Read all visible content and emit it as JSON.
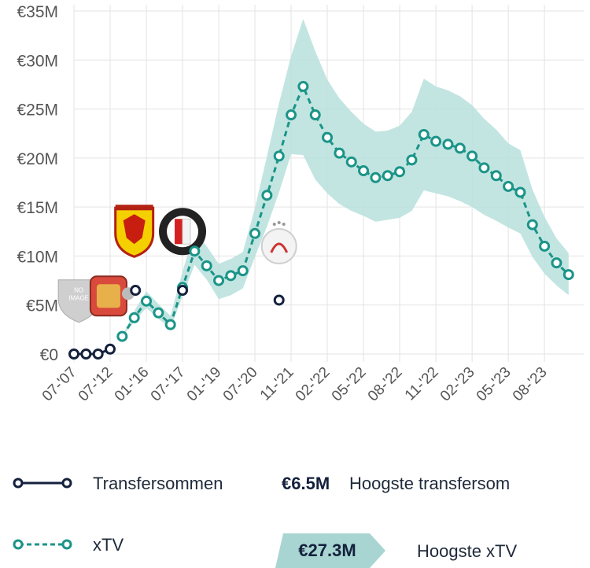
{
  "chart_data": {
    "type": "line",
    "y_ticks": [
      "€35M",
      "€30M",
      "€25M",
      "€20M",
      "€15M",
      "€10M",
      "€5M",
      "€0"
    ],
    "y_tick_values": [
      35,
      30,
      25,
      20,
      15,
      10,
      5,
      0
    ],
    "ylim": [
      0,
      35
    ],
    "x_ticks": [
      "07-'07",
      "07-'12",
      "01-'16",
      "07-'17",
      "01-'19",
      "07-'20",
      "11-'21",
      "02-'22",
      "05-'22",
      "08-'22",
      "11-'22",
      "02-'23",
      "05-'23",
      "08-'23"
    ],
    "x_tick_index": [
      0,
      3,
      6,
      9,
      12,
      15,
      18,
      21,
      24,
      27,
      30,
      33,
      36,
      39
    ],
    "x_count": 42,
    "series": [
      {
        "name": "xTV",
        "color": "#1b9488",
        "band_color": "#b7e0dc",
        "points": [
          {
            "i": 4,
            "v": 1.8
          },
          {
            "i": 5,
            "v": 3.7
          },
          {
            "i": 6,
            "v": 5.4
          },
          {
            "i": 7,
            "v": 4.2
          },
          {
            "i": 8,
            "v": 3.0
          },
          {
            "i": 9,
            "v": 6.8
          },
          {
            "i": 10,
            "v": 10.5
          },
          {
            "i": 11,
            "v": 9.0
          },
          {
            "i": 12,
            "v": 7.5
          },
          {
            "i": 13,
            "v": 8.0
          },
          {
            "i": 14,
            "v": 8.5
          },
          {
            "i": 15,
            "v": 12.3
          },
          {
            "i": 16,
            "v": 16.2
          },
          {
            "i": 17,
            "v": 20.2
          },
          {
            "i": 18,
            "v": 24.4
          },
          {
            "i": 19,
            "v": 27.3
          },
          {
            "i": 20,
            "v": 24.4
          },
          {
            "i": 21,
            "v": 22.1
          },
          {
            "i": 22,
            "v": 20.5
          },
          {
            "i": 23,
            "v": 19.6
          },
          {
            "i": 24,
            "v": 18.7
          },
          {
            "i": 25,
            "v": 18.0
          },
          {
            "i": 26,
            "v": 18.2
          },
          {
            "i": 27,
            "v": 18.6
          },
          {
            "i": 28,
            "v": 19.8
          },
          {
            "i": 29,
            "v": 22.4
          },
          {
            "i": 30,
            "v": 21.7
          },
          {
            "i": 31,
            "v": 21.4
          },
          {
            "i": 32,
            "v": 21.0
          },
          {
            "i": 33,
            "v": 20.2
          },
          {
            "i": 34,
            "v": 19.0
          },
          {
            "i": 35,
            "v": 18.2
          },
          {
            "i": 36,
            "v": 17.1
          },
          {
            "i": 37,
            "v": 16.5
          },
          {
            "i": 38,
            "v": 13.2
          },
          {
            "i": 39,
            "v": 11.0
          },
          {
            "i": 40,
            "v": 9.3
          },
          {
            "i": 41,
            "v": 8.1
          }
        ],
        "band": [
          {
            "i": 4,
            "lo": 1.8,
            "hi": 1.8
          },
          {
            "i": 5,
            "lo": 3.3,
            "hi": 4.4
          },
          {
            "i": 6,
            "lo": 4.7,
            "hi": 6.4
          },
          {
            "i": 7,
            "lo": 3.6,
            "hi": 5.1
          },
          {
            "i": 8,
            "lo": 2.6,
            "hi": 3.9
          },
          {
            "i": 9,
            "lo": 5.9,
            "hi": 8.4
          },
          {
            "i": 10,
            "lo": 9.1,
            "hi": 12.6
          },
          {
            "i": 11,
            "lo": 7.6,
            "hi": 11.0
          },
          {
            "i": 12,
            "lo": 5.6,
            "hi": 9.2
          },
          {
            "i": 13,
            "lo": 6.0,
            "hi": 9.7
          },
          {
            "i": 14,
            "lo": 6.7,
            "hi": 10.4
          },
          {
            "i": 15,
            "lo": 9.9,
            "hi": 14.9
          },
          {
            "i": 16,
            "lo": 13.0,
            "hi": 20.2
          },
          {
            "i": 17,
            "lo": 16.5,
            "hi": 25.6
          },
          {
            "i": 18,
            "lo": 20.4,
            "hi": 30.4
          },
          {
            "i": 19,
            "lo": 20.3,
            "hi": 34.2
          },
          {
            "i": 20,
            "lo": 17.8,
            "hi": 30.9
          },
          {
            "i": 21,
            "lo": 16.4,
            "hi": 28.0
          },
          {
            "i": 22,
            "lo": 15.3,
            "hi": 26.1
          },
          {
            "i": 23,
            "lo": 14.6,
            "hi": 24.7
          },
          {
            "i": 24,
            "lo": 14.1,
            "hi": 23.5
          },
          {
            "i": 25,
            "lo": 13.5,
            "hi": 22.7
          },
          {
            "i": 26,
            "lo": 13.7,
            "hi": 22.8
          },
          {
            "i": 27,
            "lo": 13.9,
            "hi": 23.3
          },
          {
            "i": 28,
            "lo": 14.6,
            "hi": 24.7
          },
          {
            "i": 29,
            "lo": 16.7,
            "hi": 28.1
          },
          {
            "i": 30,
            "lo": 16.4,
            "hi": 27.3
          },
          {
            "i": 31,
            "lo": 16.1,
            "hi": 26.9
          },
          {
            "i": 32,
            "lo": 15.6,
            "hi": 26.3
          },
          {
            "i": 33,
            "lo": 15.0,
            "hi": 25.4
          },
          {
            "i": 34,
            "lo": 14.2,
            "hi": 24.0
          },
          {
            "i": 35,
            "lo": 13.6,
            "hi": 22.9
          },
          {
            "i": 36,
            "lo": 12.9,
            "hi": 21.5
          },
          {
            "i": 37,
            "lo": 12.3,
            "hi": 20.8
          },
          {
            "i": 38,
            "lo": 9.9,
            "hi": 16.8
          },
          {
            "i": 39,
            "lo": 8.2,
            "hi": 14.0
          },
          {
            "i": 40,
            "lo": 7.0,
            "hi": 11.8
          },
          {
            "i": 41,
            "lo": 6.0,
            "hi": 10.3
          }
        ]
      },
      {
        "name": "Transfersommen",
        "color": "#14213d",
        "points": [
          {
            "i": 0,
            "v": 0
          },
          {
            "i": 1,
            "v": 0
          },
          {
            "i": 2,
            "v": 0
          },
          {
            "i": 3,
            "v": 0.5
          },
          {
            "i": 5.1,
            "v": 6.5
          },
          {
            "i": 9,
            "v": 6.5
          },
          {
            "i": 17,
            "v": 5.5
          }
        ]
      }
    ],
    "club_logos": [
      {
        "name": "no-image",
        "label_line1": "NO",
        "label_line2": "IMAGE",
        "i": 0.4,
        "v": 5.8
      },
      {
        "name": "local-club",
        "i": 2.8,
        "v": 6.0
      },
      {
        "name": "watford",
        "i": 5.0,
        "v": 12.5
      },
      {
        "name": "feyenoord",
        "i": 9.0,
        "v": 12.5
      },
      {
        "name": "ajax",
        "i": 17.0,
        "v": 11.0
      }
    ]
  },
  "legend": {
    "transfers_label": "Transfersommen",
    "xtv_label": "xTV",
    "max_transfer_value": "€6.5M",
    "max_transfer_desc": "Hoogste transfersom",
    "max_xtv_value": "€27.3M",
    "max_xtv_desc": "Hoogste xTV"
  }
}
